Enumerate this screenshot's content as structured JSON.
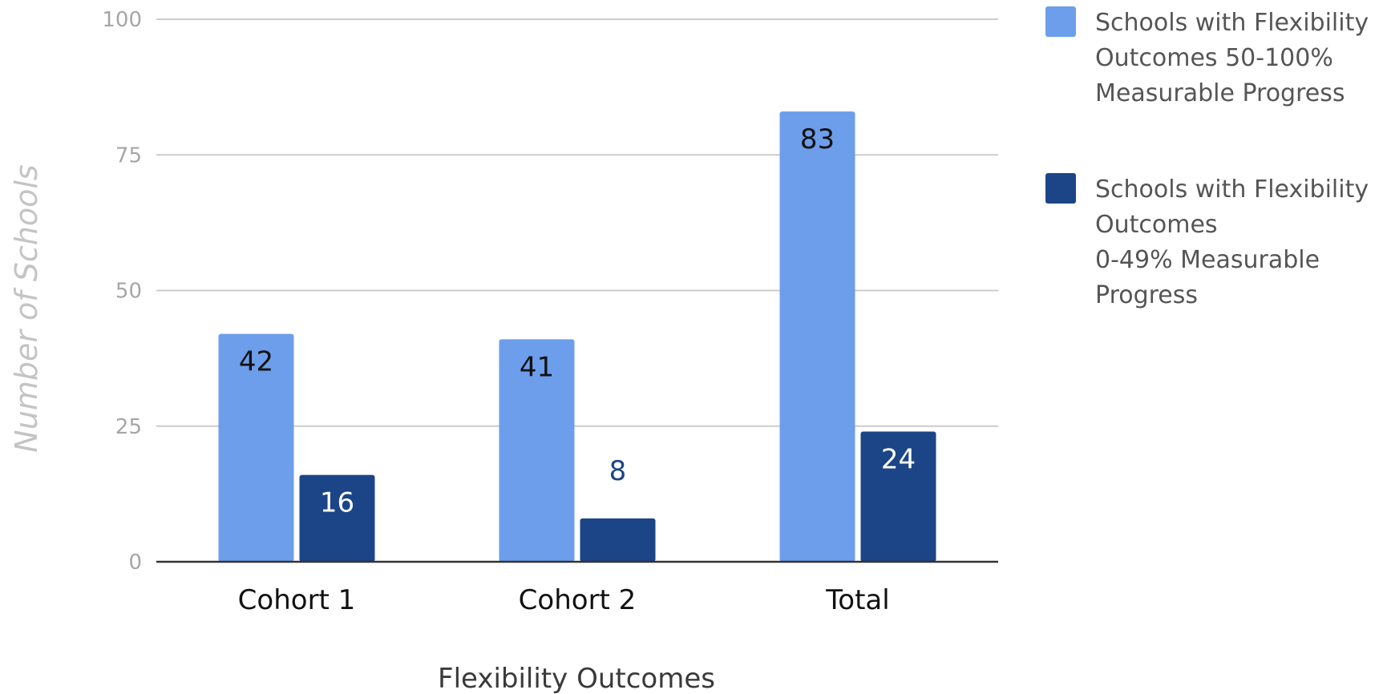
{
  "chart_data": {
    "type": "bar",
    "title": "",
    "xlabel": "Flexibility Outcomes",
    "ylabel": "Number of Schools",
    "categories": [
      "Cohort 1",
      "Cohort 2",
      "Total"
    ],
    "ylim": [
      0,
      100
    ],
    "yticks": [
      0,
      25,
      50,
      75,
      100
    ],
    "grid": true,
    "legend_position": "right",
    "series": [
      {
        "name": "Schools with Flexibility Outcomes 50-100% Measurable Progress",
        "legend_lines": [
          "Schools with Flexibility",
          "Outcomes 50-100%",
          "Measurable Progress"
        ],
        "values": [
          42,
          41,
          83
        ],
        "color": "#6d9eeb",
        "label_color": "#111111"
      },
      {
        "name": "Schools with Flexibility Outcomes 0-49% Measurable Progress",
        "legend_lines": [
          "Schools with Flexibility",
          "Outcomes",
          "0-49% Measurable",
          "Progress"
        ],
        "values": [
          16,
          8,
          24
        ],
        "color": "#1c4587",
        "label_color": "#ffffff",
        "outside_label_color": "#1c4587"
      }
    ]
  }
}
